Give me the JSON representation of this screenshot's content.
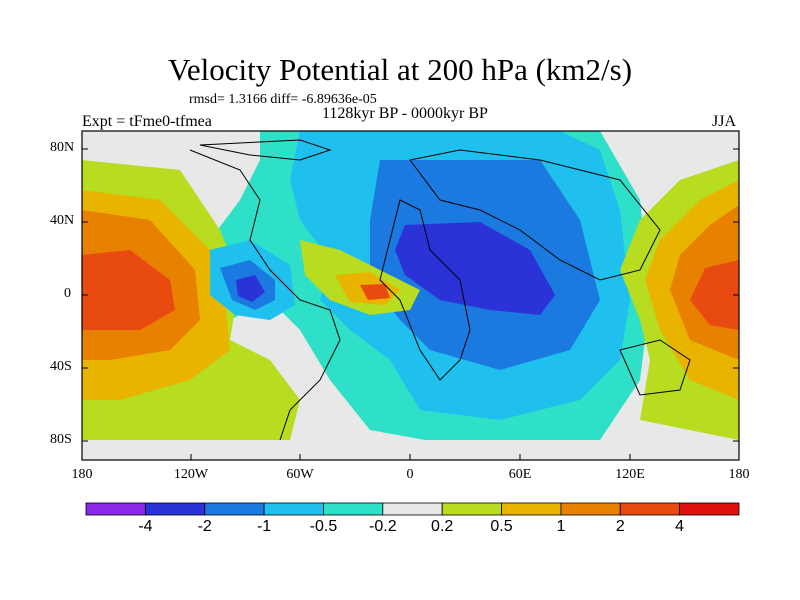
{
  "title": "Velocity Potential at 200 hPa (km2/s)",
  "stats": "rmsd= 1.3166 diff= -6.89636e-05",
  "period": "1128kyr BP - 0000kyr BP",
  "experiment": "Expt = tFme0-tfmea",
  "season": "JJA",
  "y_ticks": [
    "80N",
    "40N",
    "0",
    "40S",
    "80S"
  ],
  "x_ticks": [
    "180",
    "120W",
    "60W",
    "0",
    "60E",
    "120E",
    "180"
  ],
  "colorbar": {
    "labels": [
      "-4",
      "-2",
      "-1",
      "-0.5",
      "-0.2",
      "0.2",
      "0.5",
      "1",
      "2",
      "4"
    ],
    "colors": [
      "#8a28e8",
      "#2a32d8",
      "#1a7ae0",
      "#1fc0ee",
      "#2ee0c8",
      "#e8e8e8",
      "#b8dc20",
      "#e8b400",
      "#e88000",
      "#e84a10",
      "#e01010"
    ]
  }
}
